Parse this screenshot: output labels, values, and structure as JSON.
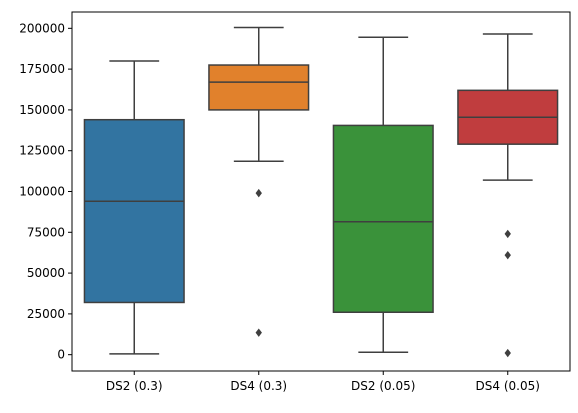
{
  "chart_data": {
    "type": "box",
    "title": "",
    "xlabel": "",
    "ylabel": "",
    "ylim": [
      -10000,
      210000
    ],
    "yticks": [
      0,
      25000,
      50000,
      75000,
      100000,
      125000,
      150000,
      175000,
      200000
    ],
    "ytick_labels": [
      "0",
      "25000",
      "50000",
      "75000",
      "100000",
      "125000",
      "150000",
      "175000",
      "200000"
    ],
    "categories": [
      "DS2 (0.3)",
      "DS4 (0.3)",
      "DS2 (0.05)",
      "DS4 (0.05)"
    ],
    "colors": [
      "#3274a1",
      "#e1812c",
      "#3a923a",
      "#c03d3e"
    ],
    "edge_color": "#3f3f3f",
    "grid": false,
    "boxes": [
      {
        "category": "DS2 (0.3)",
        "whisker_low": 500,
        "q1": 32000,
        "median": 94000,
        "q3": 144000,
        "whisker_high": 180000,
        "outliers": []
      },
      {
        "category": "DS4 (0.3)",
        "whisker_low": 118500,
        "q1": 150000,
        "median": 167000,
        "q3": 177500,
        "whisker_high": 200500,
        "outliers": [
          99000,
          13500
        ]
      },
      {
        "category": "DS2 (0.05)",
        "whisker_low": 1500,
        "q1": 26000,
        "median": 81500,
        "q3": 140500,
        "whisker_high": 194500,
        "outliers": []
      },
      {
        "category": "DS4 (0.05)",
        "whisker_low": 107000,
        "q1": 129000,
        "median": 145500,
        "q3": 162000,
        "whisker_high": 196500,
        "outliers": [
          74000,
          61000,
          1000
        ]
      }
    ]
  }
}
